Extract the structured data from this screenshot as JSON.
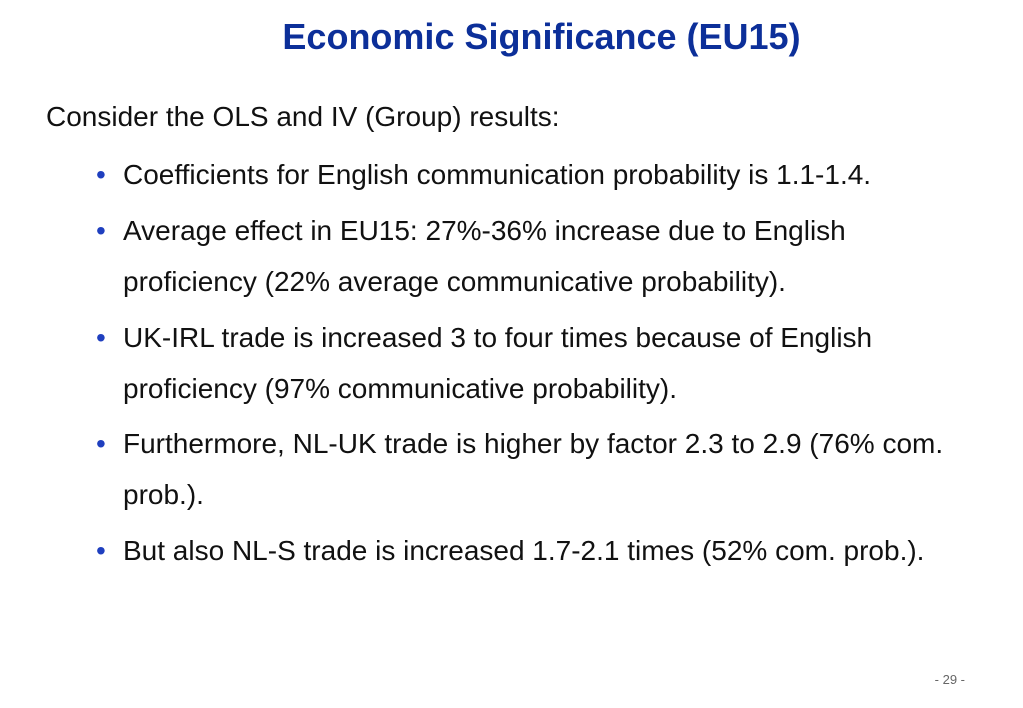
{
  "slide": {
    "title": "Economic Significance (EU15)",
    "intro": "Consider the OLS and IV (Group) results:",
    "bullets": [
      {
        "text": "Coefficients for English communication probability is 1.1-1.4."
      },
      {
        "text": "Average effect in EU15: 27%-36% increase due to English proficiency (22% average communicative probability)."
      },
      {
        "text": "UK-IRL trade is increased 3 to four times because of English proficiency (97% communicative probability)."
      },
      {
        "text": "Furthermore, NL-UK trade is higher by factor 2.3 to 2.9 (76% com. prob.)."
      },
      {
        "text": "But also NL-S trade is increased 1.7-2.1 times (52% com. prob.)."
      }
    ],
    "bullet_glyph": "•",
    "page_number": "- 29 -"
  },
  "colors": {
    "title": "#0c2f99",
    "bullet": "#1f3fbf",
    "text": "#111111"
  }
}
